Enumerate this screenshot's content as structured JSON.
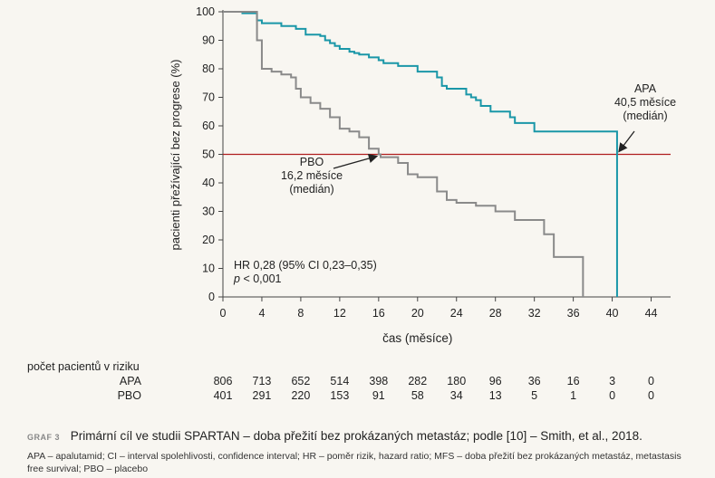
{
  "chart_data": {
    "type": "line",
    "xlabel": "čas (měsíce)",
    "ylabel": "pacienti přežívající bez progrese (%)",
    "xlim": [
      0,
      46
    ],
    "ylim": [
      0,
      100
    ],
    "xticks": [
      0,
      4,
      8,
      12,
      16,
      20,
      24,
      28,
      32,
      36,
      40,
      44
    ],
    "yticks": [
      0,
      10,
      20,
      30,
      40,
      50,
      60,
      70,
      80,
      90,
      100
    ],
    "reference_line": {
      "y": 50,
      "color": "#b01e1e"
    },
    "series": [
      {
        "name": "APA",
        "color": "#1a97a8",
        "x": [
          0,
          2,
          3.5,
          4,
          6,
          7.5,
          8.5,
          10,
          10.5,
          11,
          11.5,
          12,
          13,
          13.5,
          14,
          15,
          16,
          16.5,
          18,
          20,
          22,
          22.5,
          23,
          25,
          25.5,
          26,
          26.5,
          27.5,
          29.5,
          30,
          32,
          40.5,
          40.5
        ],
        "y": [
          100,
          99.5,
          97,
          96,
          95,
          94,
          92,
          91.5,
          90,
          89,
          88,
          87,
          86,
          85.5,
          85,
          84,
          83,
          82,
          81,
          79,
          77,
          74,
          73,
          71,
          70,
          69,
          67,
          65,
          63,
          61,
          58,
          58,
          0
        ]
      },
      {
        "name": "PBO",
        "color": "#8a8a8a",
        "x": [
          0,
          3.5,
          4,
          5,
          6,
          7,
          7.5,
          8,
          9,
          10,
          11,
          12,
          13,
          14,
          15,
          16,
          16.2,
          18,
          19,
          20,
          22,
          23,
          24,
          26,
          28,
          30,
          33,
          34,
          37,
          37
        ],
        "y": [
          100,
          90,
          80,
          79,
          78,
          77,
          73,
          70,
          68,
          66,
          63,
          59,
          58,
          56,
          52,
          50,
          49,
          47,
          43,
          42,
          37,
          34,
          33,
          32,
          30,
          27,
          22,
          14,
          13,
          0
        ]
      }
    ],
    "annotations": [
      {
        "id": "apa",
        "lines": [
          "APA",
          "40,5 měsíce",
          "(medián)"
        ]
      },
      {
        "id": "pbo",
        "lines": [
          "PBO",
          "16,2 měsíce",
          "(medián)"
        ]
      }
    ],
    "hr_text": "HR 0,28 (95% CI 0,23–0,35)",
    "p_text": "< 0,001"
  },
  "risk_table": {
    "title": "počet pacientů v riziku",
    "rows": [
      {
        "label": "APA",
        "values": [
          "806",
          "713",
          "652",
          "514",
          "398",
          "282",
          "180",
          "96",
          "36",
          "16",
          "3",
          "0"
        ]
      },
      {
        "label": "PBO",
        "values": [
          "401",
          "291",
          "220",
          "153",
          "91",
          "58",
          "34",
          "13",
          "5",
          "1",
          "0",
          "0"
        ]
      }
    ]
  },
  "caption": {
    "tag": "GRAF 3",
    "text": "Primární cíl ve studii SPARTAN – doba přežití bez prokázaných metastáz; podle [10] – Smith, et al., 2018."
  },
  "footnote": "APA – apalutamid; CI – interval spolehlivosti, confidence interval; HR – poměr rizik, hazard ratio; MFS – doba přežití bez prokázaných metastáz, metastasis free survival; PBO – placebo"
}
